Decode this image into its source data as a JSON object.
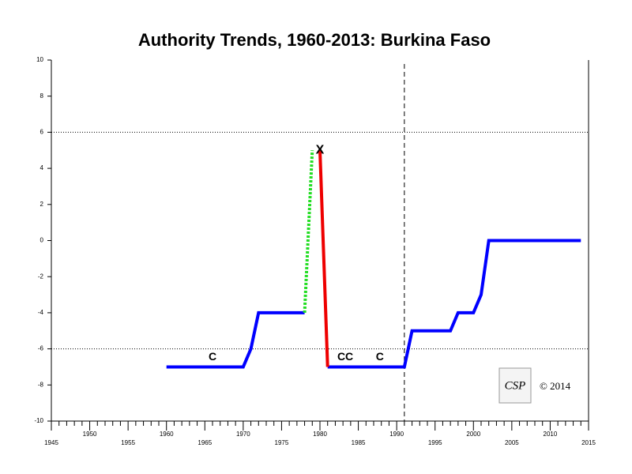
{
  "chart_data": {
    "type": "line",
    "title": "Authority Trends, 1960-2013: Burkina Faso",
    "x": [
      1960,
      1970,
      1971,
      1972,
      1978,
      1979,
      1980,
      1981,
      1991,
      1992,
      1997,
      1998,
      2000,
      2001,
      2002,
      2014
    ],
    "series": [
      {
        "color": "#0000ff",
        "style": "solid",
        "values": [
          -7,
          -7,
          -6,
          -4,
          -4,
          null,
          null,
          -7,
          -7,
          -5,
          -5,
          -4,
          -4,
          -3,
          0,
          0
        ]
      },
      {
        "color": "#22dd22",
        "style": "dotted",
        "values": [
          null,
          null,
          null,
          null,
          -4,
          5,
          null,
          null,
          null,
          null,
          null,
          null,
          null,
          null,
          null,
          null
        ]
      },
      {
        "color": "#ee0000",
        "style": "solid",
        "values": [
          null,
          null,
          null,
          null,
          null,
          null,
          5,
          -7,
          null,
          null,
          null,
          null,
          null,
          null,
          null,
          null
        ]
      }
    ],
    "annotations": [
      {
        "text": "X",
        "x": 1980,
        "y": 5
      },
      {
        "text": "C",
        "x": 1966,
        "y": -7
      },
      {
        "text": "CC",
        "x": 1983.3,
        "y": -7
      },
      {
        "text": "C",
        "x": 1987.8,
        "y": -7
      }
    ],
    "xlim": [
      1945,
      2015
    ],
    "ylim": [
      -10,
      10
    ],
    "xticks": [
      1945,
      1950,
      1955,
      1960,
      1965,
      1970,
      1975,
      1980,
      1985,
      1990,
      1995,
      2000,
      2005,
      2010,
      2015
    ],
    "xminorticks": [
      1946,
      1947,
      1948,
      1949,
      1951,
      1952,
      1953,
      1954,
      1956,
      1957,
      1958,
      1959,
      1961,
      1962,
      1963,
      1964,
      1966,
      1967,
      1968,
      1969,
      1971,
      1972,
      1973,
      1974,
      1976,
      1977,
      1978,
      1979,
      1981,
      1982,
      1983,
      1984,
      1986,
      1987,
      1988,
      1989,
      1991,
      1992,
      1993,
      1994,
      1996,
      1997,
      1998,
      1999,
      2001,
      2002,
      2003,
      2004,
      2006,
      2007,
      2008,
      2009,
      2011,
      2012,
      2013,
      2014
    ],
    "yticks": [
      -10,
      -8,
      -6,
      -4,
      -2,
      0,
      2,
      4,
      6,
      8,
      10
    ],
    "hlines": [
      6,
      -6
    ],
    "vline": 1991,
    "logo": "CSP",
    "copyright": "© 2014"
  }
}
